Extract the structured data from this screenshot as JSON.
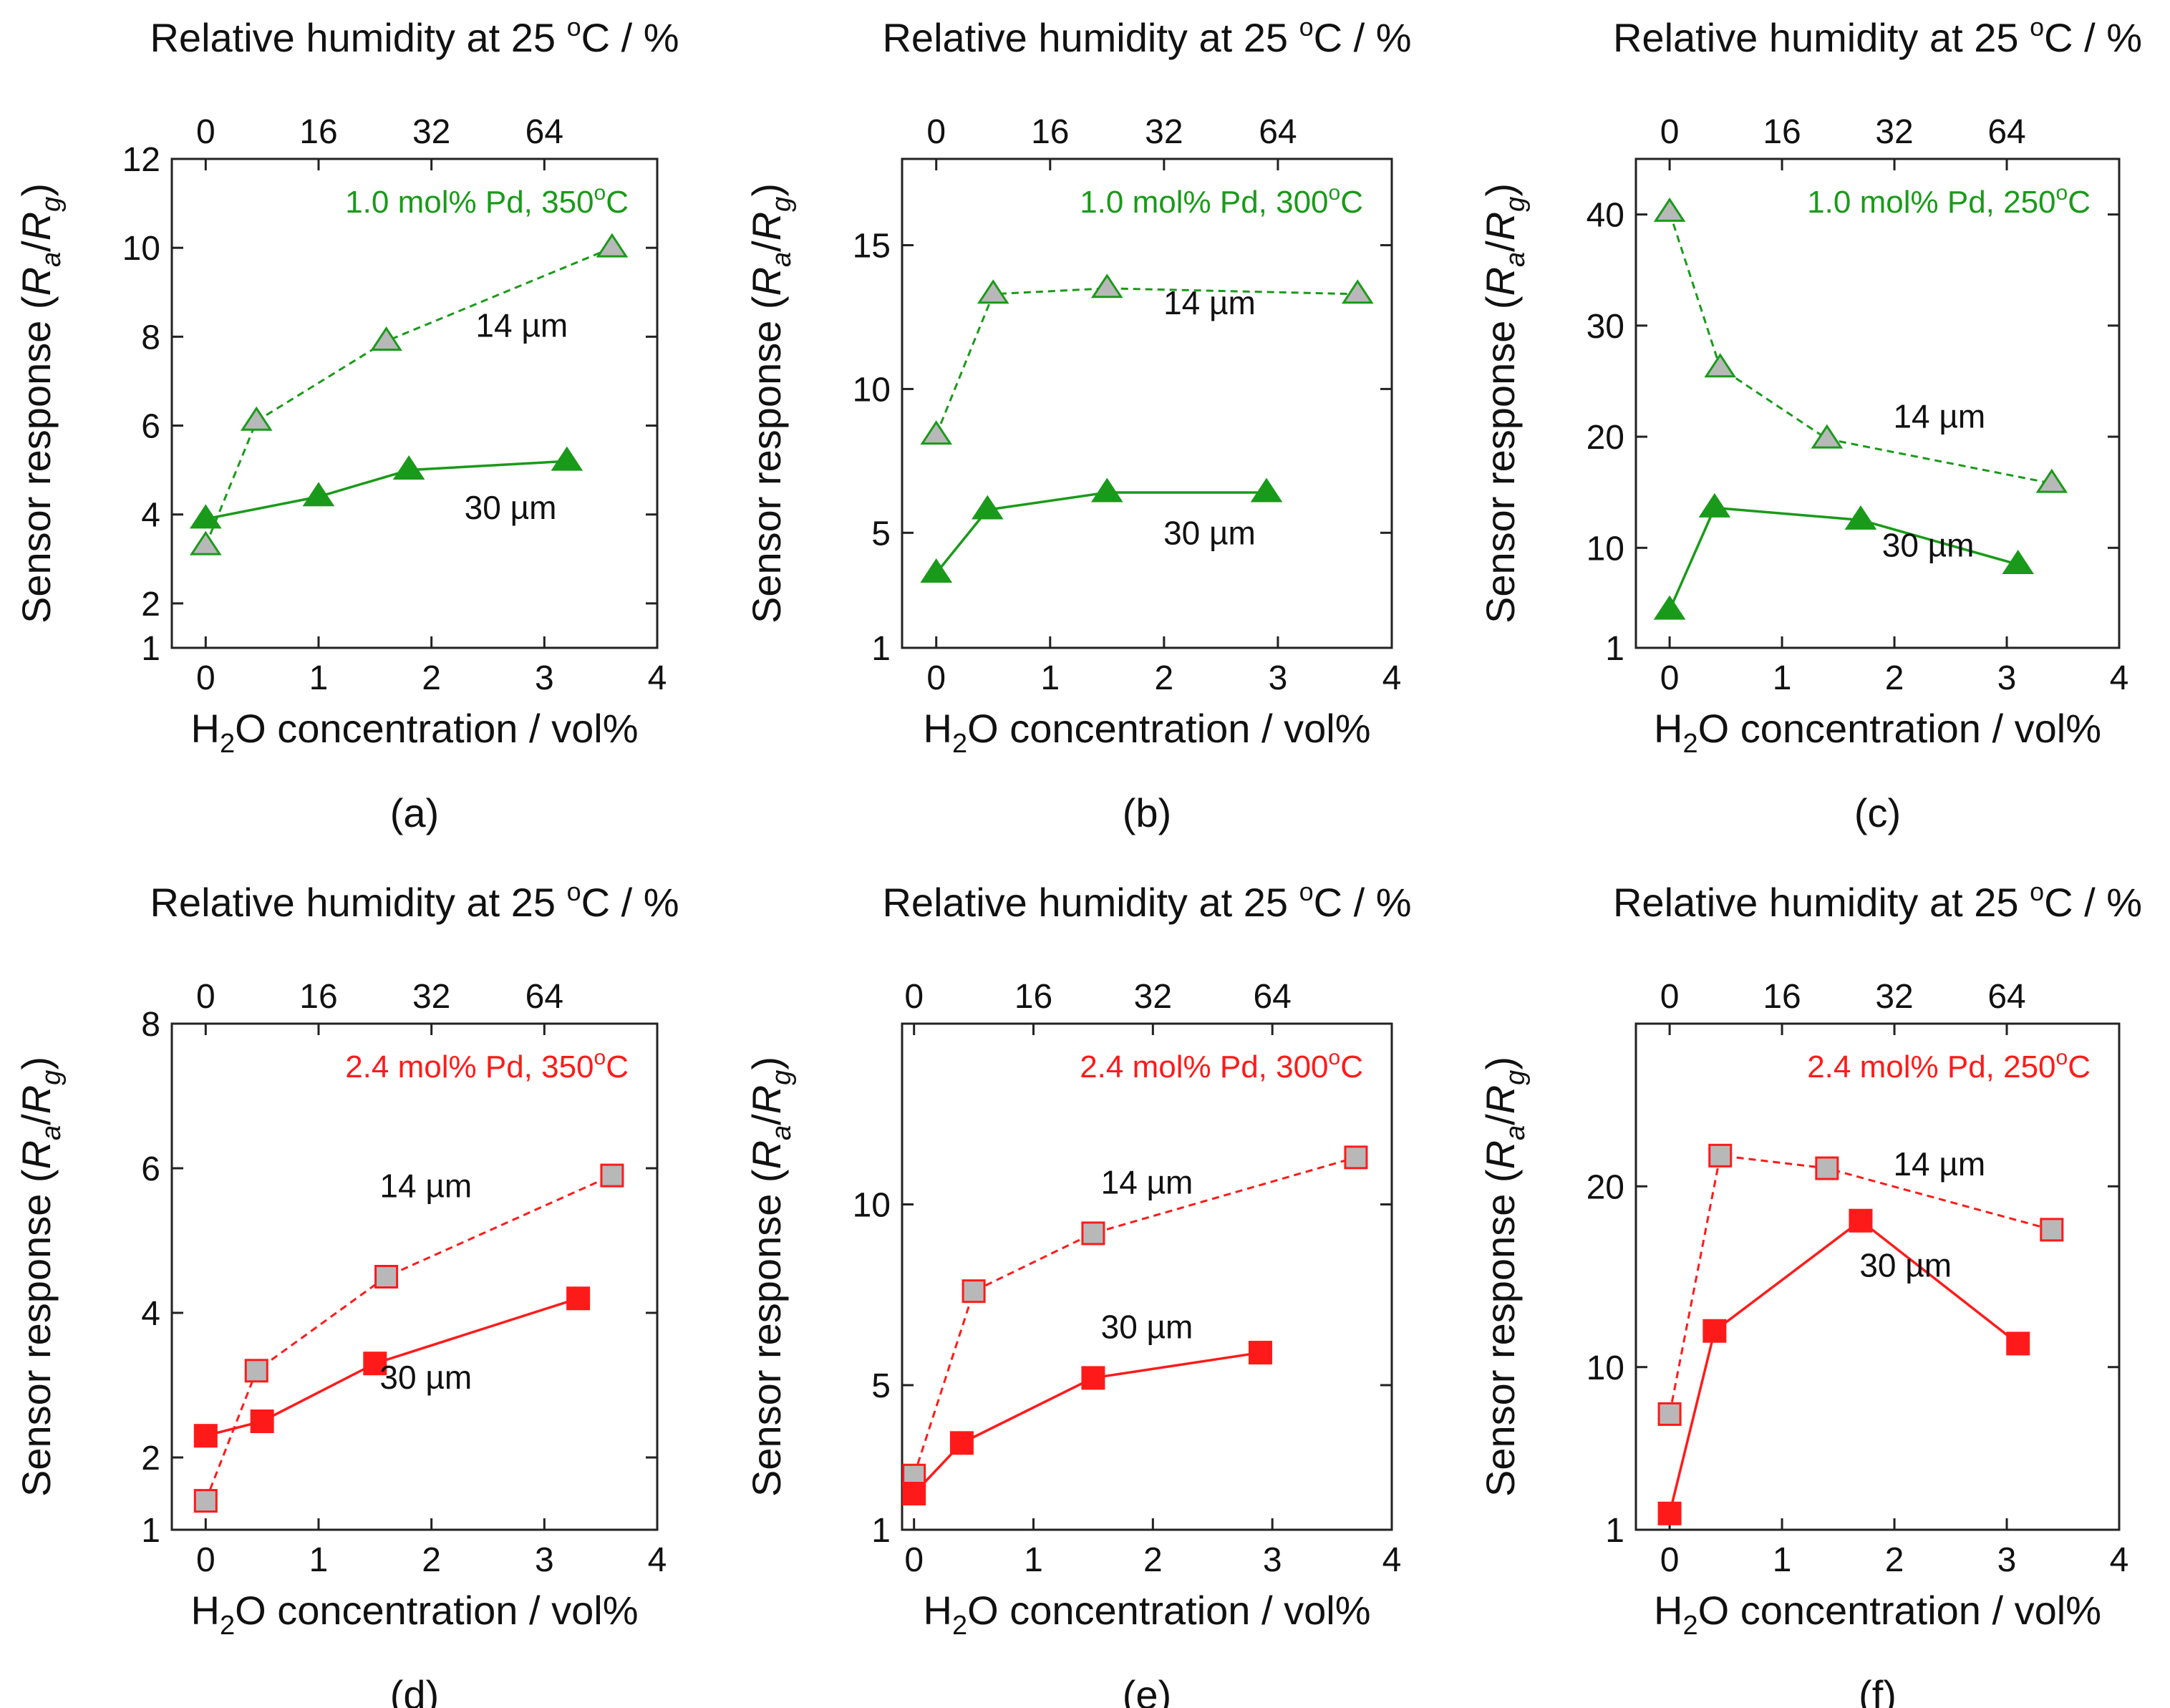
{
  "colors": {
    "green": "#1a9a1a",
    "red": "#ff1a1a",
    "gray_fill": "#b8b8b8",
    "axis": "#222222"
  },
  "chart_data": [
    {
      "id": "a",
      "panel_label": "(a)",
      "type": "line",
      "annotation": "1.0 mol% Pd, 350",
      "annotation_unit": "C",
      "color": "green",
      "marker": "triangle",
      "top_title": "Relative humidity at 25",
      "top_title_unit": "C / %",
      "xlabel_pre": "H",
      "xlabel_sub": "2",
      "xlabel_post": "O concentration / vol%",
      "ylabel_pre": "Sensor response (",
      "ylabel_ra": "R",
      "ylabel_ra_sub": "a",
      "ylabel_slash": "/",
      "ylabel_rg": "R",
      "ylabel_rg_sub": "g",
      "ylabel_post": ")",
      "xlim": [
        -0.3,
        4
      ],
      "ylim": [
        1,
        12
      ],
      "xticks": [
        0,
        1,
        2,
        3,
        4
      ],
      "xtick_labels": [
        "0",
        "1",
        "2",
        "3",
        "4"
      ],
      "yticks": [
        1,
        2,
        4,
        6,
        8,
        10,
        12
      ],
      "ytick_labels": [
        "1",
        "2",
        "4",
        "6",
        "8",
        "10",
        "12"
      ],
      "top_ticks": [
        0,
        1,
        2,
        3
      ],
      "top_tick_labels": [
        "0",
        "16",
        "32",
        "64"
      ],
      "series": [
        {
          "name": "14 µm",
          "label_x": 2.8,
          "label_y": 8.0,
          "dashed": true,
          "filled": false,
          "x": [
            0,
            0.45,
            1.6,
            3.6
          ],
          "y": [
            3.3,
            6.1,
            7.9,
            10.0
          ]
        },
        {
          "name": "30 µm",
          "label_x": 2.7,
          "label_y": 3.9,
          "dashed": false,
          "filled": true,
          "x": [
            0,
            1.0,
            1.8,
            3.2
          ],
          "y": [
            3.9,
            4.4,
            5.0,
            5.2
          ]
        }
      ]
    },
    {
      "id": "b",
      "panel_label": "(b)",
      "type": "line",
      "annotation": "1.0 mol% Pd, 300",
      "annotation_unit": "C",
      "color": "green",
      "marker": "triangle",
      "top_title": "Relative humidity at 25",
      "top_title_unit": "C / %",
      "xlabel_pre": "H",
      "xlabel_sub": "2",
      "xlabel_post": "O concentration / vol%",
      "ylabel_pre": "Sensor response (",
      "ylabel_ra": "R",
      "ylabel_ra_sub": "a",
      "ylabel_slash": "/",
      "ylabel_rg": "R",
      "ylabel_rg_sub": "g",
      "ylabel_post": ")",
      "xlim": [
        -0.3,
        4
      ],
      "ylim": [
        1,
        18
      ],
      "xticks": [
        0,
        1,
        2,
        3,
        4
      ],
      "xtick_labels": [
        "0",
        "1",
        "2",
        "3",
        "4"
      ],
      "yticks": [
        1,
        5,
        10,
        15
      ],
      "ytick_labels": [
        "1",
        "5",
        "10",
        "15"
      ],
      "top_ticks": [
        0,
        1,
        2,
        3
      ],
      "top_tick_labels": [
        "0",
        "16",
        "32",
        "64"
      ],
      "series": [
        {
          "name": "14 µm",
          "label_x": 2.4,
          "label_y": 12.6,
          "dashed": true,
          "filled": false,
          "x": [
            0,
            0.5,
            1.5,
            3.7
          ],
          "y": [
            8.4,
            13.3,
            13.5,
            13.3
          ]
        },
        {
          "name": "30 µm",
          "label_x": 2.4,
          "label_y": 4.6,
          "dashed": false,
          "filled": true,
          "x": [
            0,
            0.45,
            1.5,
            2.9
          ],
          "y": [
            3.6,
            5.8,
            6.4,
            6.4
          ]
        }
      ]
    },
    {
      "id": "c",
      "panel_label": "(c)",
      "type": "line",
      "annotation": "1.0 mol% Pd, 250",
      "annotation_unit": "C",
      "color": "green",
      "marker": "triangle",
      "top_title": "Relative humidity at 25",
      "top_title_unit": "C / %",
      "xlabel_pre": "H",
      "xlabel_sub": "2",
      "xlabel_post": "O concentration / vol%",
      "ylabel_pre": "Sensor response (",
      "ylabel_ra": "R",
      "ylabel_ra_sub": "a",
      "ylabel_slash": "/",
      "ylabel_rg": "R",
      "ylabel_rg_sub": "g",
      "ylabel_post": ")",
      "xlim": [
        -0.3,
        4
      ],
      "ylim": [
        1,
        45
      ],
      "xticks": [
        0,
        1,
        2,
        3,
        4
      ],
      "xtick_labels": [
        "0",
        "1",
        "2",
        "3",
        "4"
      ],
      "yticks": [
        1,
        10,
        20,
        30,
        40
      ],
      "ytick_labels": [
        "1",
        "10",
        "20",
        "30",
        "40"
      ],
      "top_ticks": [
        0,
        1,
        2,
        3
      ],
      "top_tick_labels": [
        "0",
        "16",
        "32",
        "64"
      ],
      "series": [
        {
          "name": "14 µm",
          "label_x": 2.4,
          "label_y": 20.8,
          "dashed": true,
          "filled": false,
          "x": [
            0,
            0.45,
            1.4,
            3.4
          ],
          "y": [
            40.2,
            26.2,
            19.8,
            15.8
          ]
        },
        {
          "name": "30 µm",
          "label_x": 2.3,
          "label_y": 9.2,
          "dashed": false,
          "filled": true,
          "x": [
            0,
            0.4,
            1.7,
            3.1
          ],
          "y": [
            4.4,
            13.6,
            12.5,
            8.5
          ]
        }
      ]
    },
    {
      "id": "d",
      "panel_label": "(d)",
      "type": "line",
      "annotation": "2.4 mol% Pd, 350",
      "annotation_unit": "C",
      "color": "red",
      "marker": "square",
      "top_title": "Relative humidity at 25",
      "top_title_unit": "C / %",
      "xlabel_pre": "H",
      "xlabel_sub": "2",
      "xlabel_post": "O concentration / vol%",
      "ylabel_pre": "Sensor response (",
      "ylabel_ra": "R",
      "ylabel_ra_sub": "a",
      "ylabel_slash": "/",
      "ylabel_rg": "R",
      "ylabel_rg_sub": "g",
      "ylabel_post": ")",
      "xlim": [
        -0.3,
        4
      ],
      "ylim": [
        1,
        8
      ],
      "xticks": [
        0,
        1,
        2,
        3,
        4
      ],
      "xtick_labels": [
        "0",
        "1",
        "2",
        "3",
        "4"
      ],
      "yticks": [
        1,
        2,
        4,
        6,
        8
      ],
      "ytick_labels": [
        "1",
        "2",
        "4",
        "6",
        "8"
      ],
      "top_ticks": [
        0,
        1,
        2,
        3
      ],
      "top_tick_labels": [
        "0",
        "16",
        "32",
        "64"
      ],
      "series": [
        {
          "name": "14 µm",
          "label_x": 1.95,
          "label_y": 5.6,
          "dashed": true,
          "filled": false,
          "x": [
            0,
            0.45,
            1.6,
            3.6
          ],
          "y": [
            1.4,
            3.2,
            4.5,
            5.9
          ]
        },
        {
          "name": "30 µm",
          "label_x": 1.95,
          "label_y": 2.95,
          "dashed": false,
          "filled": true,
          "x": [
            0,
            0.5,
            1.5,
            3.3
          ],
          "y": [
            2.3,
            2.5,
            3.3,
            4.2
          ]
        }
      ]
    },
    {
      "id": "e",
      "panel_label": "(e)",
      "type": "line",
      "annotation": "2.4 mol% Pd, 300",
      "annotation_unit": "C",
      "color": "red",
      "marker": "square",
      "top_title": "Relative humidity at 25",
      "top_title_unit": "C / %",
      "xlabel_pre": "H",
      "xlabel_sub": "2",
      "xlabel_post": "O concentration / vol%",
      "ylabel_pre": "Sensor response (",
      "ylabel_ra": "R",
      "ylabel_ra_sub": "a",
      "ylabel_slash": "/",
      "ylabel_rg": "R",
      "ylabel_rg_sub": "g",
      "ylabel_post": ")",
      "xlim": [
        -0.1,
        4
      ],
      "ylim": [
        1,
        15
      ],
      "xticks": [
        0,
        1,
        2,
        3,
        4
      ],
      "xtick_labels": [
        "0",
        "1",
        "2",
        "3",
        "4"
      ],
      "yticks": [
        1,
        5,
        10
      ],
      "ytick_labels": [
        "1",
        "5",
        "10"
      ],
      "top_ticks": [
        0,
        1,
        2,
        3
      ],
      "top_tick_labels": [
        "0",
        "16",
        "32",
        "64"
      ],
      "series": [
        {
          "name": "14 µm",
          "label_x": 1.95,
          "label_y": 10.3,
          "dashed": true,
          "filled": false,
          "x": [
            0,
            0.5,
            1.5,
            3.7
          ],
          "y": [
            2.5,
            7.6,
            9.2,
            11.3
          ]
        },
        {
          "name": "30 µm",
          "label_x": 1.95,
          "label_y": 6.3,
          "dashed": false,
          "filled": true,
          "x": [
            0,
            0.4,
            1.5,
            2.9
          ],
          "y": [
            2.0,
            3.4,
            5.2,
            5.9
          ]
        }
      ]
    },
    {
      "id": "f",
      "panel_label": "(f)",
      "type": "line",
      "annotation": "2.4 mol% Pd, 250",
      "annotation_unit": "C",
      "color": "red",
      "marker": "square",
      "top_title": "Relative humidity at 25",
      "top_title_unit": "C / %",
      "xlabel_pre": "H",
      "xlabel_sub": "2",
      "xlabel_post": "O concentration / vol%",
      "ylabel_pre": "Sensor response (",
      "ylabel_ra": "R",
      "ylabel_ra_sub": "a",
      "ylabel_slash": "/",
      "ylabel_rg": "R",
      "ylabel_rg_sub": "g",
      "ylabel_post": ")",
      "xlim": [
        -0.3,
        4
      ],
      "ylim": [
        1,
        29
      ],
      "xticks": [
        0,
        1,
        2,
        3,
        4
      ],
      "xtick_labels": [
        "0",
        "1",
        "2",
        "3",
        "4"
      ],
      "yticks": [
        1,
        10,
        20
      ],
      "ytick_labels": [
        "1",
        "10",
        "20"
      ],
      "top_ticks": [
        0,
        1,
        2,
        3
      ],
      "top_tick_labels": [
        "0",
        "16",
        "32",
        "64"
      ],
      "series": [
        {
          "name": "14 µm",
          "label_x": 2.4,
          "label_y": 20.6,
          "dashed": true,
          "filled": false,
          "x": [
            0,
            0.45,
            1.4,
            3.4
          ],
          "y": [
            7.4,
            21.7,
            21.0,
            17.6
          ]
        },
        {
          "name": "30 µm",
          "label_x": 2.1,
          "label_y": 15.0,
          "dashed": false,
          "filled": true,
          "x": [
            0,
            0.4,
            1.7,
            3.1
          ],
          "y": [
            1.9,
            12.0,
            18.1,
            11.3
          ]
        }
      ]
    }
  ]
}
